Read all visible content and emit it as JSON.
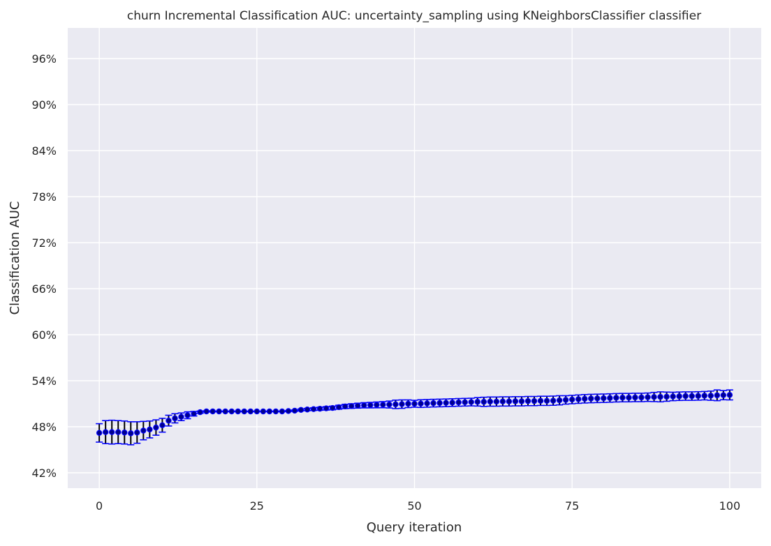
{
  "chart_data": {
    "type": "scatter",
    "title": "churn Incremental Classification AUC: uncertainty_sampling using KNeighborsClassifier classifier",
    "xlabel": "Query iteration",
    "ylabel": "Classification AUC",
    "xlim": [
      -5,
      105
    ],
    "ylim": [
      0.4,
      1.0
    ],
    "x_ticks": [
      0,
      25,
      50,
      75,
      100
    ],
    "x_tick_labels": [
      "0",
      "25",
      "50",
      "75",
      "100"
    ],
    "y_ticks": [
      0.42,
      0.48,
      0.54,
      0.6,
      0.66,
      0.72,
      0.78,
      0.84,
      0.9,
      0.96
    ],
    "y_tick_labels": [
      "42%",
      "48%",
      "54%",
      "60%",
      "66%",
      "72%",
      "78%",
      "84%",
      "90%",
      "96%"
    ],
    "grid": true,
    "colors": {
      "background": "#eaeaf2",
      "grid": "#ffffff",
      "marker_fill": "#00008b",
      "marker_edge": "#0000ff",
      "errorbar": "#000000",
      "cap": "#0000ff"
    },
    "series": [
      {
        "x": [
          0,
          1,
          2,
          3,
          4,
          5,
          6,
          7,
          8,
          9,
          10,
          11,
          12,
          13,
          14,
          15,
          16,
          17,
          18,
          19,
          20,
          21,
          22,
          23,
          24,
          25,
          26,
          27,
          28,
          29,
          30,
          31,
          32,
          33,
          34,
          35,
          36,
          37,
          38,
          39,
          40,
          41,
          42,
          43,
          44,
          45,
          46,
          47,
          48,
          49,
          50,
          51,
          52,
          53,
          54,
          55,
          56,
          57,
          58,
          59,
          60,
          61,
          62,
          63,
          64,
          65,
          66,
          67,
          68,
          69,
          70,
          71,
          72,
          73,
          74,
          75,
          76,
          77,
          78,
          79,
          80,
          81,
          82,
          83,
          84,
          85,
          86,
          87,
          88,
          89,
          90,
          91,
          92,
          93,
          94,
          95,
          96,
          97,
          98,
          99,
          100
        ],
        "y": [
          0.472,
          0.473,
          0.473,
          0.473,
          0.4725,
          0.4715,
          0.4725,
          0.475,
          0.4765,
          0.479,
          0.482,
          0.488,
          0.491,
          0.493,
          0.495,
          0.497,
          0.499,
          0.5,
          0.5,
          0.5,
          0.5,
          0.5,
          0.5,
          0.5,
          0.5,
          0.5,
          0.5,
          0.5,
          0.5,
          0.5,
          0.5005,
          0.501,
          0.502,
          0.5025,
          0.503,
          0.5035,
          0.504,
          0.5045,
          0.5055,
          0.5065,
          0.507,
          0.5075,
          0.508,
          0.5082,
          0.5085,
          0.5088,
          0.509,
          0.5092,
          0.5095,
          0.51,
          0.51,
          0.5102,
          0.5105,
          0.5108,
          0.511,
          0.5112,
          0.5115,
          0.5118,
          0.512,
          0.5122,
          0.5125,
          0.5125,
          0.5128,
          0.5128,
          0.513,
          0.513,
          0.5132,
          0.5132,
          0.5135,
          0.5135,
          0.5138,
          0.5138,
          0.514,
          0.5145,
          0.515,
          0.5155,
          0.516,
          0.5165,
          0.5168,
          0.517,
          0.5172,
          0.5175,
          0.5178,
          0.518,
          0.518,
          0.5182,
          0.5182,
          0.5185,
          0.5188,
          0.519,
          0.5192,
          0.5195,
          0.5198,
          0.52,
          0.52,
          0.5202,
          0.5205,
          0.5205,
          0.521,
          0.5212,
          0.5215
        ],
        "err": [
          0.012,
          0.015,
          0.0155,
          0.015,
          0.015,
          0.015,
          0.014,
          0.012,
          0.011,
          0.01,
          0.009,
          0.007,
          0.006,
          0.005,
          0.0045,
          0.003,
          0.0015,
          0.0008,
          0.0004,
          0.0002,
          0.0002,
          0.0002,
          0.0002,
          0.0002,
          0.0002,
          0.0002,
          0.0002,
          0.0002,
          0.0002,
          0.0002,
          0.0005,
          0.0008,
          0.0012,
          0.0015,
          0.0018,
          0.002,
          0.0022,
          0.0024,
          0.0026,
          0.0028,
          0.003,
          0.0032,
          0.0034,
          0.0036,
          0.0038,
          0.004,
          0.0045,
          0.0055,
          0.0055,
          0.005,
          0.0045,
          0.005,
          0.005,
          0.005,
          0.005,
          0.005,
          0.005,
          0.005,
          0.005,
          0.005,
          0.0055,
          0.006,
          0.006,
          0.006,
          0.006,
          0.006,
          0.006,
          0.006,
          0.006,
          0.006,
          0.006,
          0.006,
          0.006,
          0.006,
          0.0055,
          0.0055,
          0.0055,
          0.0055,
          0.0055,
          0.0055,
          0.0055,
          0.0055,
          0.0055,
          0.0055,
          0.0055,
          0.0055,
          0.0055,
          0.0055,
          0.006,
          0.0065,
          0.006,
          0.0055,
          0.0055,
          0.0055,
          0.0055,
          0.0055,
          0.0055,
          0.006,
          0.007,
          0.006,
          0.0065
        ]
      }
    ]
  }
}
